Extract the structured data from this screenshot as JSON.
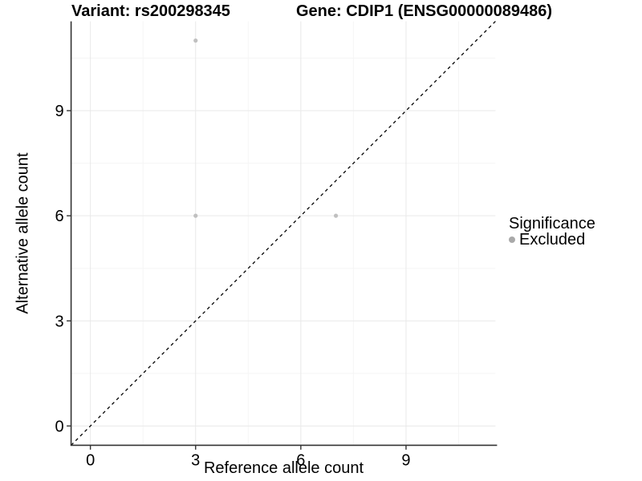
{
  "chart_data": {
    "type": "scatter",
    "title_left": "Variant: rs200298345",
    "title_right": "Gene: CDIP1 (ENSG00000089486)",
    "xlabel": "Reference allele count",
    "ylabel": "Alternative allele count",
    "xlim": [
      -0.55,
      11.55
    ],
    "ylim": [
      -0.55,
      11.55
    ],
    "x_ticks": [
      0,
      3,
      6,
      9
    ],
    "y_ticks": [
      0,
      3,
      6,
      9
    ],
    "x_minor_ticks": [
      1.5,
      4.5,
      7.5,
      10.5
    ],
    "y_minor_ticks": [
      1.5,
      4.5,
      7.5,
      10.5
    ],
    "grid": "major-and-minor",
    "legend_position": "right",
    "series": [
      {
        "name": "Excluded",
        "color": "#c0c0c0",
        "points": [
          [
            3,
            11
          ],
          [
            3,
            6
          ],
          [
            7,
            6
          ]
        ]
      }
    ],
    "reference_line": {
      "kind": "identity y=x",
      "style": "dashed",
      "color": "#000000"
    },
    "legend": {
      "title": "Significance",
      "items": [
        {
          "label": "Excluded",
          "color": "#a9a9a9"
        }
      ]
    },
    "colors": {
      "background": "#ffffff",
      "major_grid": "#e9e9e9",
      "minor_grid": "#f5f5f5",
      "axis": "#333333",
      "text": "#000000"
    }
  }
}
